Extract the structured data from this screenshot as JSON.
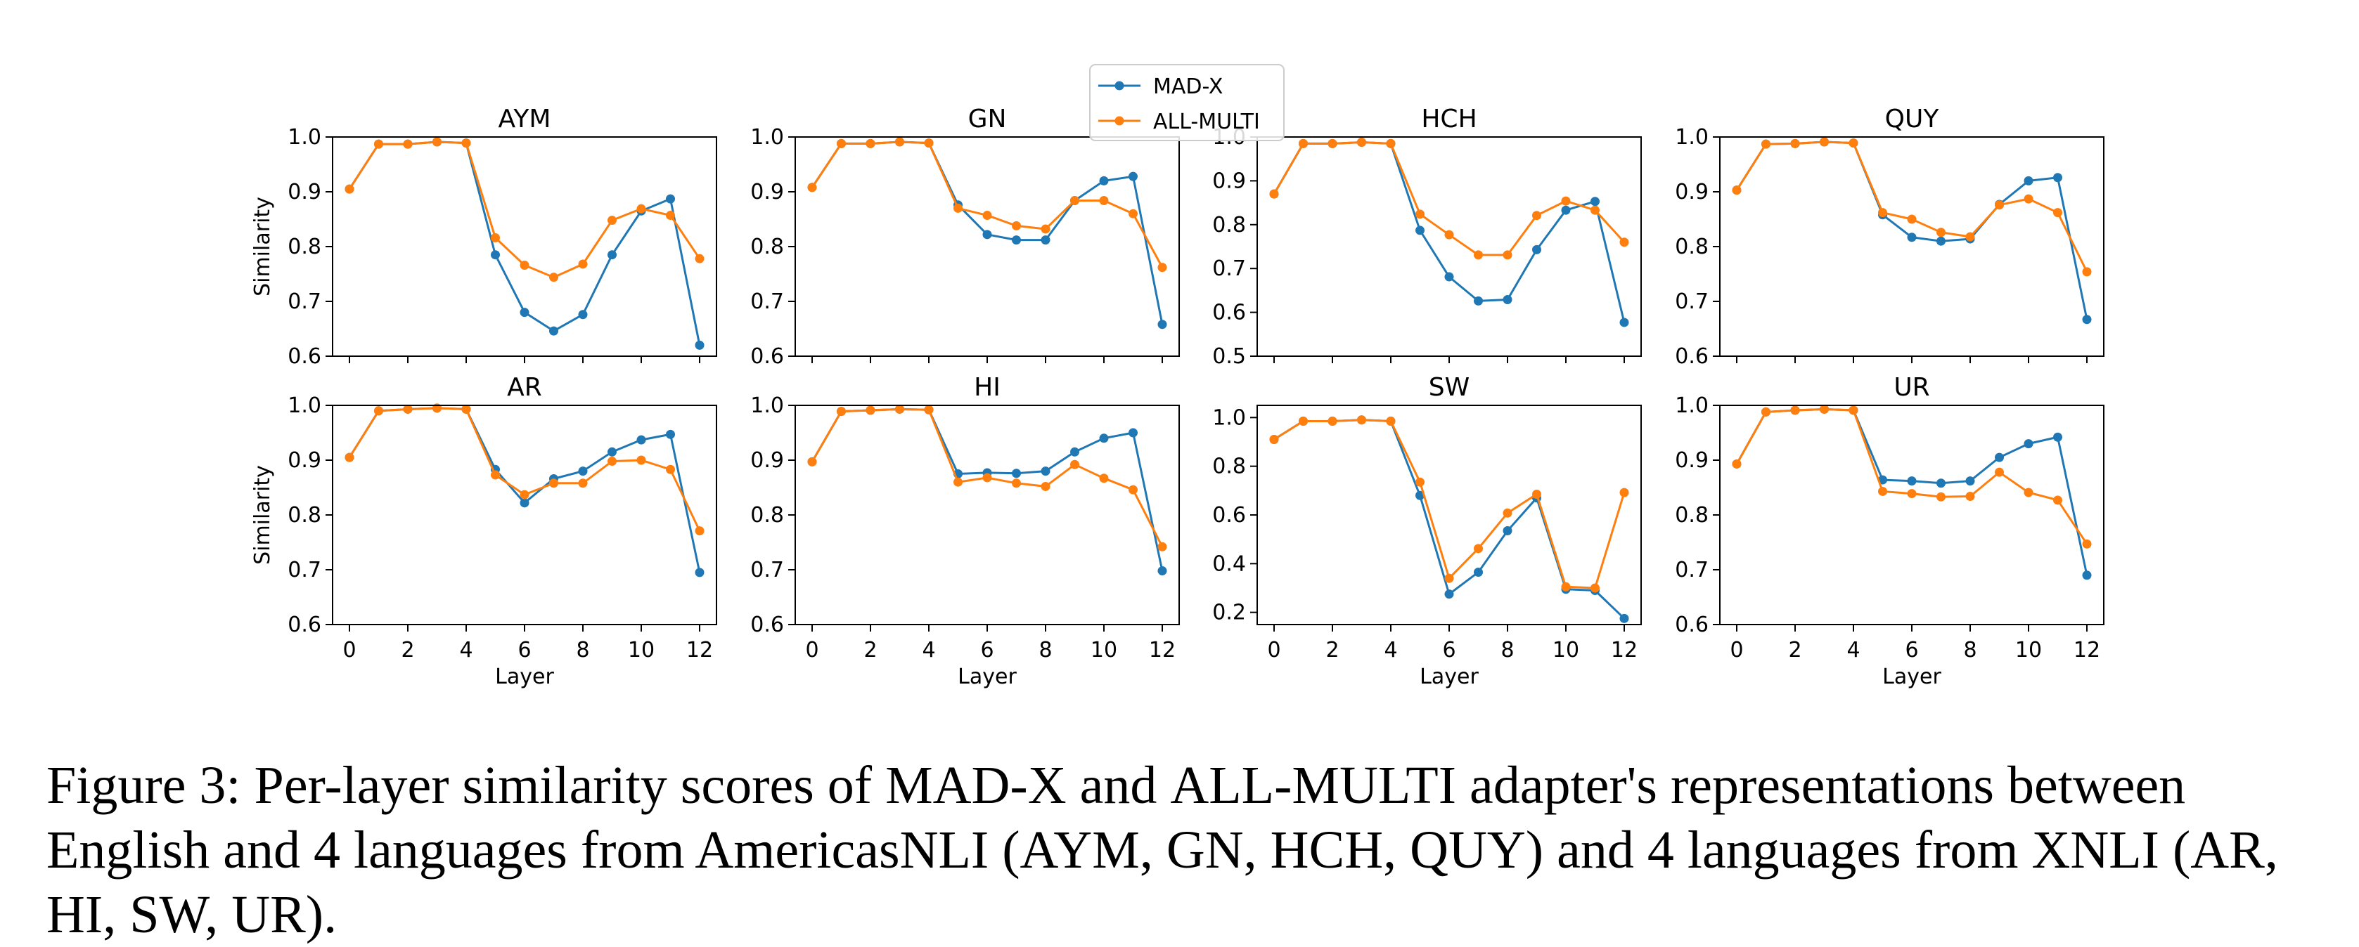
{
  "legend": {
    "entries": [
      {
        "name": "MAD-X",
        "color": "#1f77b4"
      },
      {
        "name": "ALL-MULTI",
        "color": "#ff7f0e"
      }
    ],
    "placement": "top-center"
  },
  "caption": {
    "figure_label": "Figure 3:",
    "t1": "Per-layer similarity scores of",
    "m1": "MAD-X",
    "t2": "and",
    "m2": "ALL-MULTI",
    "t3": "adapter's representations between English and 4 languages from AmericasNLI (",
    "l1": "AYM, GN, HCH, QUY",
    "t4": ") and 4 languages from XNLI (",
    "l2": "AR, HI, SW, UR",
    "t5": ")."
  },
  "chart_data": [
    {
      "type": "line",
      "title": "AYM",
      "xlabel": "",
      "ylabel": "Similarity",
      "x": [
        0,
        1,
        2,
        3,
        4,
        5,
        6,
        7,
        8,
        9,
        10,
        11,
        12
      ],
      "xticks": [],
      "ylim": [
        0.6,
        1.0
      ],
      "yticks": [
        "0.6",
        "0.7",
        "0.8",
        "0.9",
        "1.0"
      ],
      "series": [
        {
          "name": "MAD-X",
          "color": "#1f77b4",
          "values": [
            0.905,
            0.987,
            0.987,
            0.991,
            0.989,
            0.785,
            0.68,
            0.646,
            0.676,
            0.785,
            0.865,
            0.887,
            0.62
          ]
        },
        {
          "name": "ALL-MULTI",
          "color": "#ff7f0e",
          "values": [
            0.905,
            0.987,
            0.987,
            0.991,
            0.989,
            0.816,
            0.766,
            0.744,
            0.768,
            0.848,
            0.869,
            0.857,
            0.778
          ]
        }
      ]
    },
    {
      "type": "line",
      "title": "GN",
      "xlabel": "",
      "ylabel": "",
      "x": [
        0,
        1,
        2,
        3,
        4,
        5,
        6,
        7,
        8,
        9,
        10,
        11,
        12
      ],
      "xticks": [],
      "ylim": [
        0.6,
        1.0
      ],
      "yticks": [
        "0.6",
        "0.7",
        "0.8",
        "0.9",
        "1.0"
      ],
      "series": [
        {
          "name": "MAD-X",
          "color": "#1f77b4",
          "values": [
            0.908,
            0.988,
            0.988,
            0.991,
            0.989,
            0.876,
            0.822,
            0.812,
            0.812,
            0.884,
            0.92,
            0.928,
            0.658
          ]
        },
        {
          "name": "ALL-MULTI",
          "color": "#ff7f0e",
          "values": [
            0.908,
            0.988,
            0.988,
            0.991,
            0.989,
            0.87,
            0.857,
            0.838,
            0.832,
            0.884,
            0.884,
            0.86,
            0.762
          ]
        }
      ]
    },
    {
      "type": "line",
      "title": "HCH",
      "xlabel": "",
      "ylabel": "",
      "x": [
        0,
        1,
        2,
        3,
        4,
        5,
        6,
        7,
        8,
        9,
        10,
        11,
        12
      ],
      "xticks": [],
      "ylim": [
        0.5,
        1.0
      ],
      "yticks": [
        "0.5",
        "0.6",
        "0.7",
        "0.8",
        "0.9",
        "1.0"
      ],
      "series": [
        {
          "name": "MAD-X",
          "color": "#1f77b4",
          "values": [
            0.87,
            0.985,
            0.985,
            0.988,
            0.985,
            0.787,
            0.681,
            0.626,
            0.629,
            0.743,
            0.833,
            0.853,
            0.577
          ]
        },
        {
          "name": "ALL-MULTI",
          "color": "#ff7f0e",
          "values": [
            0.87,
            0.985,
            0.985,
            0.988,
            0.985,
            0.824,
            0.777,
            0.731,
            0.731,
            0.821,
            0.854,
            0.833,
            0.76
          ]
        }
      ]
    },
    {
      "type": "line",
      "title": "QUY",
      "xlabel": "",
      "ylabel": "",
      "x": [
        0,
        1,
        2,
        3,
        4,
        5,
        6,
        7,
        8,
        9,
        10,
        11,
        12
      ],
      "xticks": [],
      "ylim": [
        0.6,
        1.0
      ],
      "yticks": [
        "0.6",
        "0.7",
        "0.8",
        "0.9",
        "1.0"
      ],
      "series": [
        {
          "name": "MAD-X",
          "color": "#1f77b4",
          "values": [
            0.903,
            0.987,
            0.988,
            0.991,
            0.989,
            0.858,
            0.817,
            0.81,
            0.814,
            0.877,
            0.92,
            0.926,
            0.667
          ]
        },
        {
          "name": "ALL-MULTI",
          "color": "#ff7f0e",
          "values": [
            0.903,
            0.987,
            0.988,
            0.991,
            0.989,
            0.862,
            0.85,
            0.826,
            0.818,
            0.876,
            0.887,
            0.862,
            0.754
          ]
        }
      ]
    },
    {
      "type": "line",
      "title": "AR",
      "xlabel": "Layer",
      "ylabel": "Similarity",
      "x": [
        0,
        1,
        2,
        3,
        4,
        5,
        6,
        7,
        8,
        9,
        10,
        11,
        12
      ],
      "xticks": [
        "0",
        "2",
        "4",
        "6",
        "8",
        "10",
        "12"
      ],
      "ylim": [
        0.6,
        1.0
      ],
      "yticks": [
        "0.6",
        "0.7",
        "0.8",
        "0.9",
        "1.0"
      ],
      "series": [
        {
          "name": "MAD-X",
          "color": "#1f77b4",
          "values": [
            0.905,
            0.99,
            0.993,
            0.995,
            0.993,
            0.883,
            0.822,
            0.866,
            0.88,
            0.915,
            0.937,
            0.947,
            0.695
          ]
        },
        {
          "name": "ALL-MULTI",
          "color": "#ff7f0e",
          "values": [
            0.905,
            0.99,
            0.993,
            0.995,
            0.993,
            0.873,
            0.837,
            0.858,
            0.858,
            0.898,
            0.9,
            0.883,
            0.771
          ]
        }
      ]
    },
    {
      "type": "line",
      "title": "HI",
      "xlabel": "Layer",
      "ylabel": "",
      "x": [
        0,
        1,
        2,
        3,
        4,
        5,
        6,
        7,
        8,
        9,
        10,
        11,
        12
      ],
      "xticks": [
        "0",
        "2",
        "4",
        "6",
        "8",
        "10",
        "12"
      ],
      "ylim": [
        0.6,
        1.0
      ],
      "yticks": [
        "0.6",
        "0.7",
        "0.8",
        "0.9",
        "1.0"
      ],
      "series": [
        {
          "name": "MAD-X",
          "color": "#1f77b4",
          "values": [
            0.897,
            0.989,
            0.991,
            0.993,
            0.992,
            0.875,
            0.877,
            0.876,
            0.88,
            0.915,
            0.94,
            0.95,
            0.698
          ]
        },
        {
          "name": "ALL-MULTI",
          "color": "#ff7f0e",
          "values": [
            0.897,
            0.989,
            0.991,
            0.993,
            0.992,
            0.86,
            0.868,
            0.858,
            0.852,
            0.892,
            0.867,
            0.846,
            0.742
          ]
        }
      ]
    },
    {
      "type": "line",
      "title": "SW",
      "xlabel": "Layer",
      "ylabel": "",
      "x": [
        0,
        1,
        2,
        3,
        4,
        5,
        6,
        7,
        8,
        9,
        10,
        11,
        12
      ],
      "xticks": [
        "0",
        "2",
        "4",
        "6",
        "8",
        "10",
        "12"
      ],
      "ylim": [
        0.15,
        1.05
      ],
      "yticks": [
        "0.2",
        "0.4",
        "0.6",
        "0.8",
        "1.0"
      ],
      "series": [
        {
          "name": "MAD-X",
          "color": "#1f77b4",
          "values": [
            0.91,
            0.985,
            0.985,
            0.99,
            0.985,
            0.68,
            0.275,
            0.365,
            0.535,
            0.67,
            0.295,
            0.29,
            0.175
          ]
        },
        {
          "name": "ALL-MULTI",
          "color": "#ff7f0e",
          "values": [
            0.91,
            0.985,
            0.985,
            0.99,
            0.985,
            0.735,
            0.34,
            0.462,
            0.608,
            0.685,
            0.305,
            0.3,
            0.692
          ]
        }
      ]
    },
    {
      "type": "line",
      "title": "UR",
      "xlabel": "Layer",
      "ylabel": "",
      "x": [
        0,
        1,
        2,
        3,
        4,
        5,
        6,
        7,
        8,
        9,
        10,
        11,
        12
      ],
      "xticks": [
        "0",
        "2",
        "4",
        "6",
        "8",
        "10",
        "12"
      ],
      "ylim": [
        0.6,
        1.0
      ],
      "yticks": [
        "0.6",
        "0.7",
        "0.8",
        "0.9",
        "1.0"
      ],
      "series": [
        {
          "name": "MAD-X",
          "color": "#1f77b4",
          "values": [
            0.893,
            0.988,
            0.991,
            0.993,
            0.991,
            0.864,
            0.862,
            0.858,
            0.862,
            0.905,
            0.93,
            0.942,
            0.69
          ]
        },
        {
          "name": "ALL-MULTI",
          "color": "#ff7f0e",
          "values": [
            0.893,
            0.988,
            0.991,
            0.993,
            0.991,
            0.843,
            0.839,
            0.833,
            0.834,
            0.878,
            0.841,
            0.827,
            0.747
          ]
        }
      ]
    }
  ]
}
